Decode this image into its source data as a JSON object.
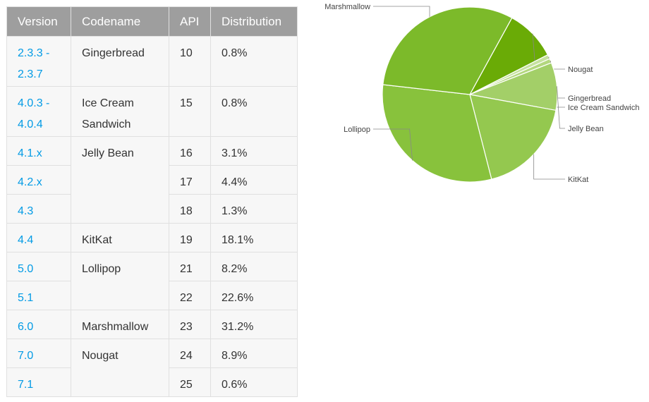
{
  "table": {
    "headers": [
      "Version",
      "Codename",
      "API",
      "Distribution"
    ],
    "rows": [
      {
        "version": [
          "2.3.3 -",
          "2.3.7"
        ],
        "codename": "Gingerbread",
        "api": "10",
        "dist": "0.8%",
        "span": 1
      },
      {
        "version": [
          "4.0.3 -",
          "4.0.4"
        ],
        "codename": "Ice Cream Sandwich",
        "api": "15",
        "dist": "0.8%",
        "span": 1
      },
      {
        "version": [
          "4.1.x"
        ],
        "codename": "Jelly Bean",
        "api": "16",
        "dist": "3.1%",
        "span": 3
      },
      {
        "version": [
          "4.2.x"
        ],
        "codename": null,
        "api": "17",
        "dist": "4.4%"
      },
      {
        "version": [
          "4.3"
        ],
        "codename": null,
        "api": "18",
        "dist": "1.3%"
      },
      {
        "version": [
          "4.4"
        ],
        "codename": "KitKat",
        "api": "19",
        "dist": "18.1%",
        "span": 1
      },
      {
        "version": [
          "5.0"
        ],
        "codename": "Lollipop",
        "api": "21",
        "dist": "8.2%",
        "span": 2
      },
      {
        "version": [
          "5.1"
        ],
        "codename": null,
        "api": "22",
        "dist": "22.6%"
      },
      {
        "version": [
          "6.0"
        ],
        "codename": "Marshmallow",
        "api": "23",
        "dist": "31.2%",
        "span": 1
      },
      {
        "version": [
          "7.0"
        ],
        "codename": "Nougat",
        "api": "24",
        "dist": "8.9%",
        "span": 2
      },
      {
        "version": [
          "7.1"
        ],
        "codename": null,
        "api": "25",
        "dist": "0.6%"
      }
    ]
  },
  "chart_data": {
    "type": "pie",
    "title": "",
    "slices": [
      {
        "label": "Nougat",
        "value": 9.5,
        "color": "#6aab06"
      },
      {
        "label": "Gingerbread",
        "value": 0.8,
        "color": "#c6e29f"
      },
      {
        "label": "Ice Cream Sandwich",
        "value": 0.8,
        "color": "#b3d77e"
      },
      {
        "label": "Jelly Bean",
        "value": 8.8,
        "color": "#a3cf68"
      },
      {
        "label": "KitKat",
        "value": 18.1,
        "color": "#94c84f"
      },
      {
        "label": "Lollipop",
        "value": 30.8,
        "color": "#88c23c"
      },
      {
        "label": "Marshmallow",
        "value": 31.2,
        "color": "#7cba2a"
      }
    ],
    "start_angle_deg": 61.2,
    "legend": "leader-line labels"
  }
}
